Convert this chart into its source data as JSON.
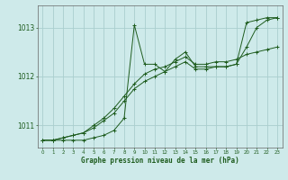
{
  "xlabel": "Graphe pression niveau de la mer (hPa)",
  "background_color": "#ceeaea",
  "grid_color": "#aacece",
  "line_color": "#1e5c1e",
  "xmin": -0.5,
  "xmax": 23.5,
  "ymin": 1010.55,
  "ymax": 1013.45,
  "yticks": [
    1011,
    1012,
    1013
  ],
  "xticks": [
    0,
    1,
    2,
    3,
    4,
    5,
    6,
    7,
    8,
    9,
    10,
    11,
    12,
    13,
    14,
    15,
    16,
    17,
    18,
    19,
    20,
    21,
    22,
    23
  ],
  "series": [
    [
      1010.7,
      1010.7,
      1010.7,
      1010.7,
      1010.7,
      1010.75,
      1010.8,
      1010.9,
      1011.15,
      1013.05,
      1012.25,
      1012.25,
      1012.1,
      1012.35,
      1012.5,
      1012.2,
      1012.2,
      1012.2,
      1012.2,
      1012.25,
      1013.1,
      1013.15,
      1013.2,
      1013.2
    ],
    [
      1010.7,
      1010.7,
      1010.75,
      1010.8,
      1010.85,
      1010.95,
      1011.1,
      1011.25,
      1011.5,
      1011.75,
      1011.9,
      1012.0,
      1012.1,
      1012.2,
      1012.3,
      1012.15,
      1012.15,
      1012.2,
      1012.2,
      1012.25,
      1012.6,
      1013.0,
      1013.15,
      1013.2
    ],
    [
      1010.7,
      1010.7,
      1010.75,
      1010.8,
      1010.85,
      1011.0,
      1011.15,
      1011.35,
      1011.6,
      1011.85,
      1012.05,
      1012.15,
      1012.2,
      1012.3,
      1012.4,
      1012.25,
      1012.25,
      1012.3,
      1012.3,
      1012.35,
      1012.45,
      1012.5,
      1012.55,
      1012.6
    ]
  ]
}
